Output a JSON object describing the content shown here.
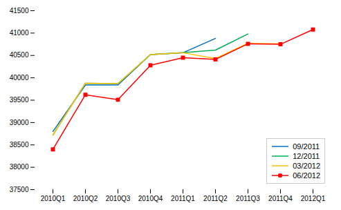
{
  "chart_data": {
    "type": "line",
    "categories": [
      "2010Q1",
      "2010Q2",
      "2010Q3",
      "2010Q4",
      "2011Q1",
      "2011Q2",
      "2011Q3",
      "2011Q4",
      "2012Q1"
    ],
    "series": [
      {
        "name": "09/2011",
        "color": "#0070c0",
        "values": [
          38800,
          39840,
          39840,
          40520,
          40560,
          40880,
          null,
          null,
          null
        ]
      },
      {
        "name": "12/2011",
        "color": "#00b050",
        "values": [
          38720,
          39880,
          39870,
          40520,
          40560,
          40620,
          40980,
          null,
          null
        ]
      },
      {
        "name": "03/2012",
        "color": "#ffc000",
        "values": [
          38720,
          39880,
          39870,
          40520,
          40560,
          40430,
          40770,
          40760,
          null
        ]
      },
      {
        "name": "06/2012",
        "color": "#ff0000",
        "marker": "square",
        "values": [
          38400,
          39620,
          39510,
          40280,
          40450,
          40410,
          40760,
          40750,
          41080
        ]
      }
    ],
    "ylim": [
      37500,
      41500
    ],
    "yticks": [
      37500,
      38000,
      38500,
      39000,
      39500,
      40000,
      40500,
      41000,
      41500
    ],
    "legend": "lower right",
    "grid": false
  }
}
